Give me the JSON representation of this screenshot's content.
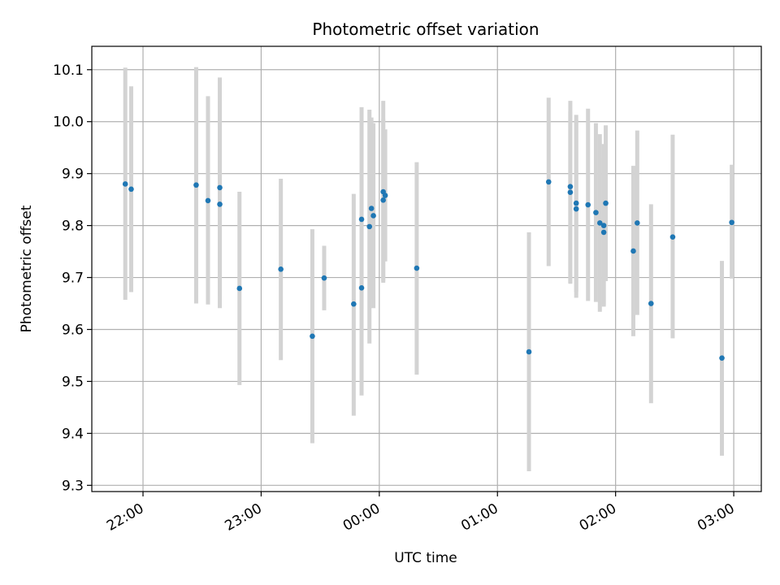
{
  "chart_data": {
    "type": "scatter",
    "title": "Photometric offset variation",
    "xlabel": "UTC time",
    "ylabel": "Photometric offset",
    "x_unit": "UTC time (HH:MM)",
    "xlim": [
      "21:34",
      "03:14"
    ],
    "ylim": [
      9.288,
      10.145
    ],
    "grid": true,
    "colors": {
      "marker": "#1f77b4",
      "errorbar": "#d3d3d3",
      "grid": "#b0b0b0"
    },
    "x_ticks": [
      "22:00",
      "23:00",
      "00:00",
      "01:00",
      "02:00",
      "03:00"
    ],
    "y_ticks": [
      "9.3",
      "9.4",
      "9.5",
      "9.6",
      "9.7",
      "9.8",
      "9.9",
      "10.0",
      "10.1"
    ],
    "points": [
      {
        "x": "21:51",
        "y": 9.88,
        "yerr": [
          9.657,
          10.104
        ]
      },
      {
        "x": "21:54",
        "y": 9.87,
        "yerr": [
          9.672,
          10.068
        ]
      },
      {
        "x": "22:27",
        "y": 9.878,
        "yerr": [
          9.65,
          10.105
        ]
      },
      {
        "x": "22:33",
        "y": 9.848,
        "yerr": [
          9.648,
          10.049
        ]
      },
      {
        "x": "22:39",
        "y": 9.873,
        "yerr": [
          9.665,
          10.085
        ]
      },
      {
        "x": "22:39",
        "y": 9.841,
        "yerr": [
          9.641,
          10.041
        ]
      },
      {
        "x": "22:49",
        "y": 9.679,
        "yerr": [
          9.493,
          9.865
        ]
      },
      {
        "x": "23:10",
        "y": 9.716,
        "yerr": [
          9.541,
          9.89
        ]
      },
      {
        "x": "23:26",
        "y": 9.587,
        "yerr": [
          9.381,
          9.793
        ]
      },
      {
        "x": "23:32",
        "y": 9.699,
        "yerr": [
          9.637,
          9.761
        ]
      },
      {
        "x": "23:47",
        "y": 9.649,
        "yerr": [
          9.434,
          9.861
        ]
      },
      {
        "x": "23:51",
        "y": 9.68,
        "yerr": [
          9.473,
          9.887
        ]
      },
      {
        "x": "23:51",
        "y": 9.812,
        "yerr": [
          9.64,
          10.028
        ]
      },
      {
        "x": "23:55",
        "y": 9.798,
        "yerr": [
          9.573,
          10.023
        ]
      },
      {
        "x": "23:56",
        "y": 9.833,
        "yerr": [
          9.658,
          10.008
        ]
      },
      {
        "x": "23:57",
        "y": 9.819,
        "yerr": [
          9.641,
          9.997
        ]
      },
      {
        "x": "00:02",
        "y": 9.865,
        "yerr": [
          9.69,
          10.04
        ]
      },
      {
        "x": "00:02",
        "y": 9.849,
        "yerr": [
          9.693,
          10.005
        ]
      },
      {
        "x": "00:03",
        "y": 9.858,
        "yerr": [
          9.731,
          9.985
        ]
      },
      {
        "x": "00:19",
        "y": 9.718,
        "yerr": [
          9.513,
          9.922
        ]
      },
      {
        "x": "01:16",
        "y": 9.557,
        "yerr": [
          9.327,
          9.787
        ]
      },
      {
        "x": "01:26",
        "y": 9.884,
        "yerr": [
          9.722,
          10.046
        ]
      },
      {
        "x": "01:37",
        "y": 9.875,
        "yerr": [
          9.688,
          10.04
        ]
      },
      {
        "x": "01:37",
        "y": 9.864,
        "yerr": [
          9.69,
          10.02
        ]
      },
      {
        "x": "01:40",
        "y": 9.843,
        "yerr": [
          9.673,
          10.013
        ]
      },
      {
        "x": "01:40",
        "y": 9.832,
        "yerr": [
          9.661,
          10.003
        ]
      },
      {
        "x": "01:46",
        "y": 9.84,
        "yerr": [
          9.655,
          10.025
        ]
      },
      {
        "x": "01:50",
        "y": 9.825,
        "yerr": [
          9.653,
          9.997
        ]
      },
      {
        "x": "01:52",
        "y": 9.805,
        "yerr": [
          9.634,
          9.976
        ]
      },
      {
        "x": "01:54",
        "y": 9.8,
        "yerr": [
          9.647,
          9.957
        ]
      },
      {
        "x": "01:54",
        "y": 9.787,
        "yerr": [
          9.644,
          9.93
        ]
      },
      {
        "x": "01:55",
        "y": 9.843,
        "yerr": [
          9.693,
          9.993
        ]
      },
      {
        "x": "02:09",
        "y": 9.751,
        "yerr": [
          9.587,
          9.915
        ]
      },
      {
        "x": "02:11",
        "y": 9.805,
        "yerr": [
          9.628,
          9.983
        ]
      },
      {
        "x": "02:18",
        "y": 9.65,
        "yerr": [
          9.458,
          9.841
        ]
      },
      {
        "x": "02:29",
        "y": 9.778,
        "yerr": [
          9.583,
          9.975
        ]
      },
      {
        "x": "02:54",
        "y": 9.545,
        "yerr": [
          9.357,
          9.732
        ]
      },
      {
        "x": "02:59",
        "y": 9.806,
        "yerr": [
          9.698,
          9.917
        ]
      }
    ]
  }
}
